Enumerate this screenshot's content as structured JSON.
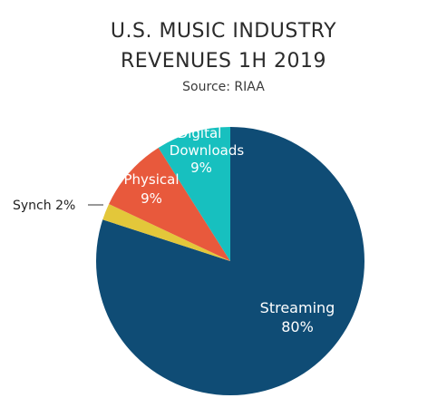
{
  "title_lines": [
    "U.S. MUSIC INDUSTRY",
    "REVENUES 1H 2019"
  ],
  "subtitle": "Source: RIAA",
  "chart_data": {
    "type": "pie",
    "title": "U.S. MUSIC INDUSTRY REVENUES 1H 2019",
    "subtitle": "Source: RIAA",
    "slices": [
      {
        "label": "Streaming",
        "value": 80,
        "value_label": "80%",
        "color": "#0f4c75"
      },
      {
        "label": "Synch",
        "value": 2,
        "value_label": "2%",
        "color": "#e3c73a"
      },
      {
        "label": "Physical",
        "value": 9,
        "value_label": "9%",
        "color": "#e8593c"
      },
      {
        "label": "Digital Downloads",
        "value": 9,
        "value_label": "9%",
        "color": "#17c0bf"
      }
    ],
    "label_color_light": "#ffffff",
    "label_color_dark": "#222222"
  }
}
